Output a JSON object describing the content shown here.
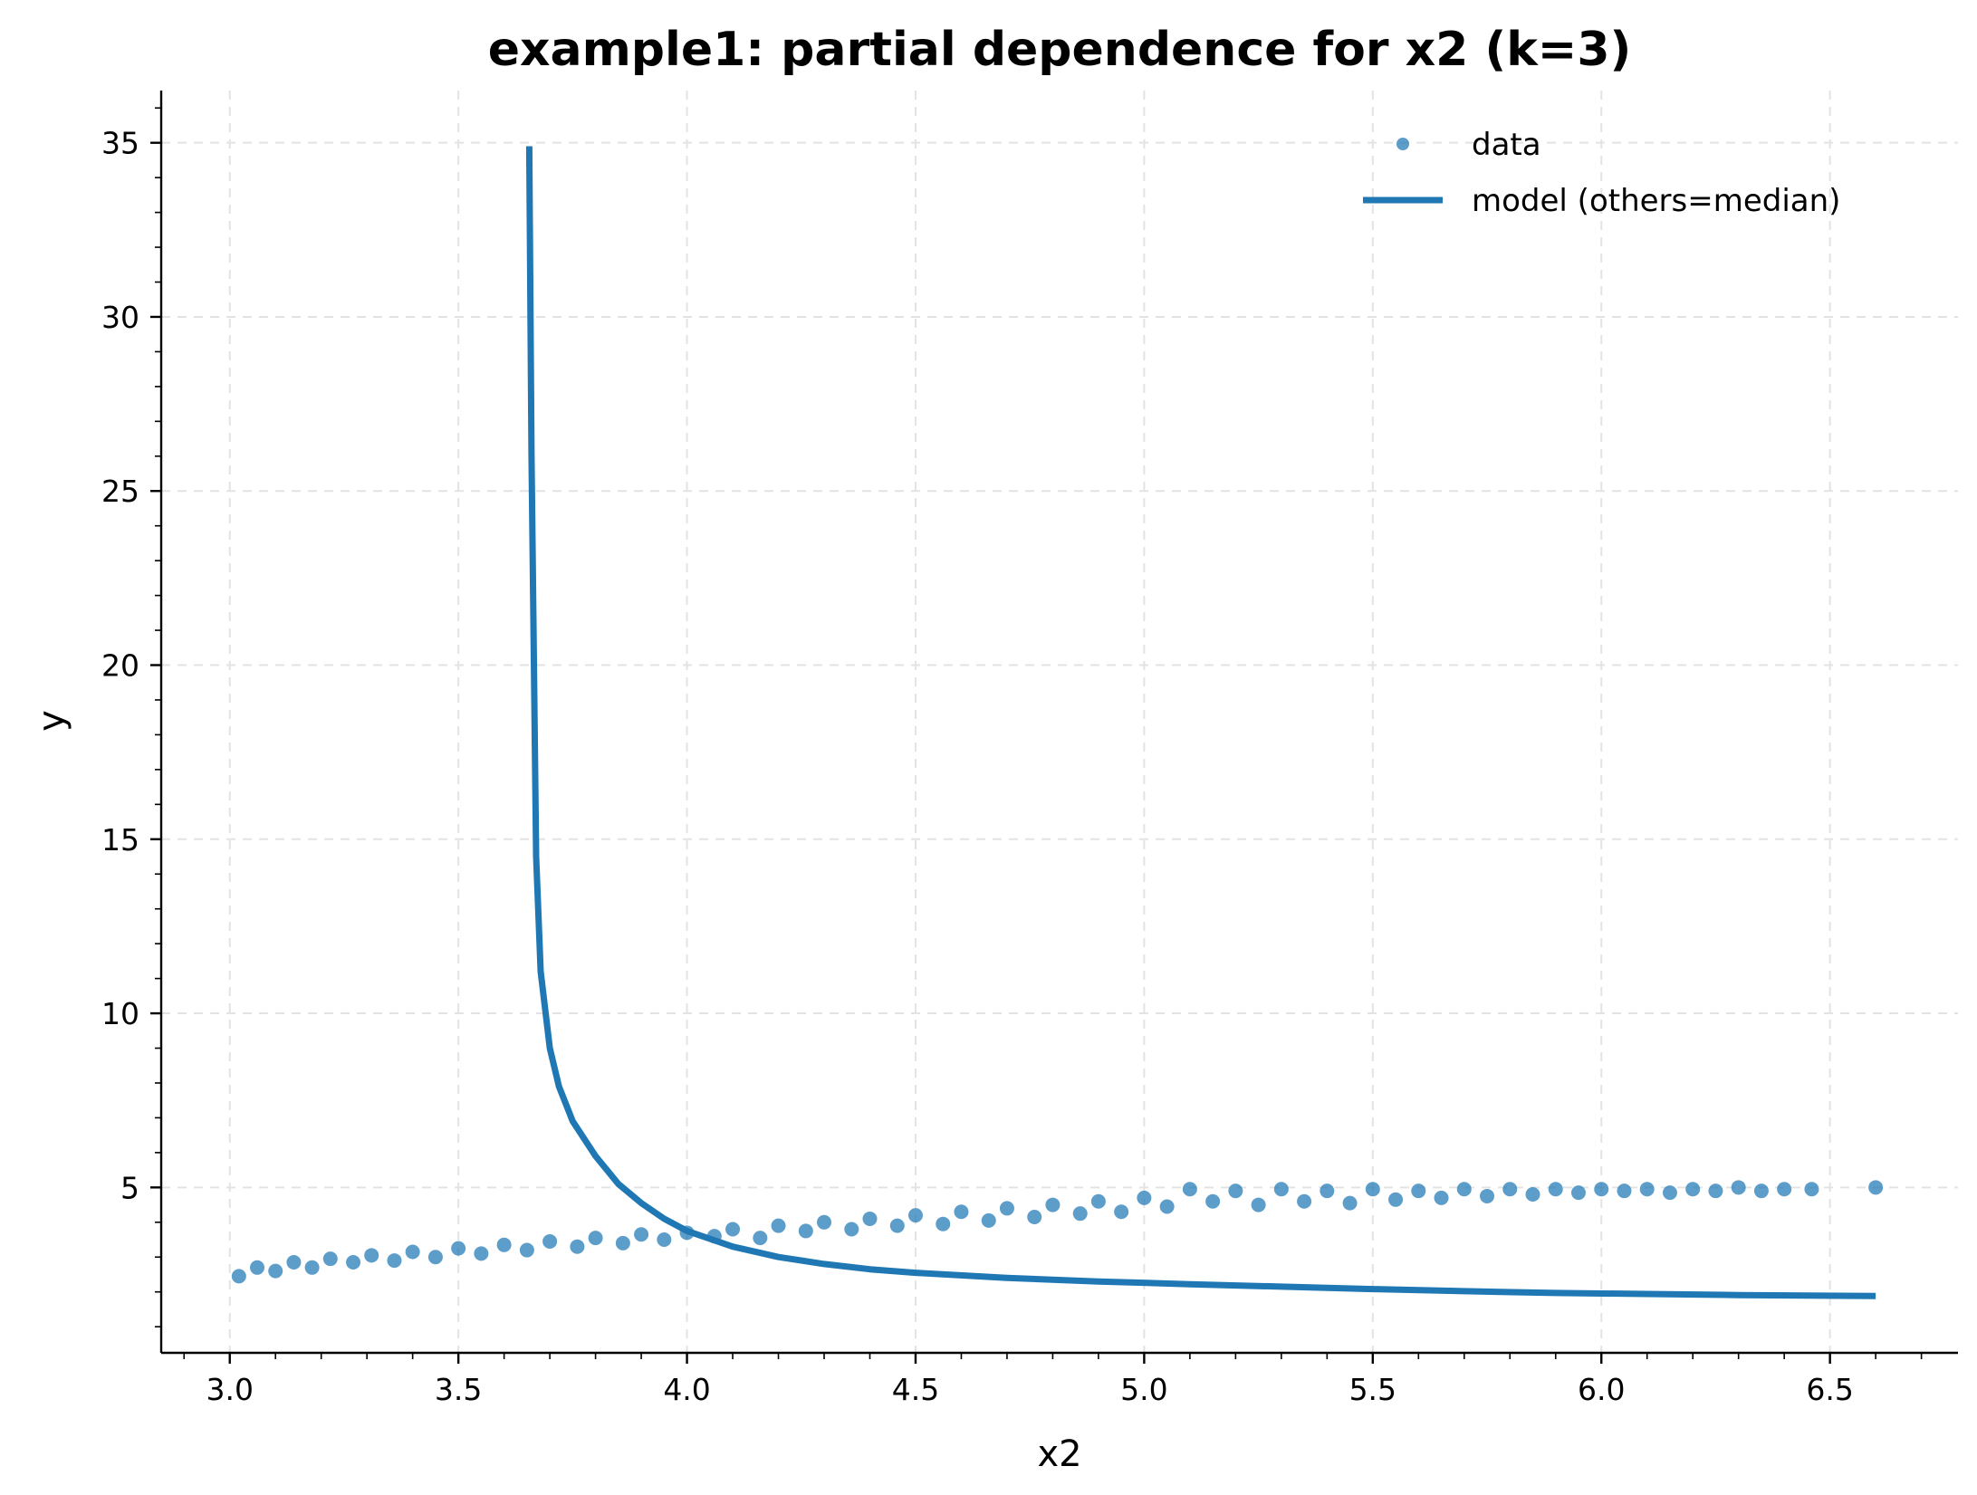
{
  "chart_data": {
    "type": "scatter",
    "title": "example1: partial dependence for x2 (k=3)",
    "xlabel": "x2",
    "ylabel": "y",
    "xlim": [
      2.85,
      6.78
    ],
    "ylim": [
      0.25,
      36.5
    ],
    "xticks": [
      "3.0",
      "3.5",
      "4.0",
      "4.5",
      "5.0",
      "5.5",
      "6.0",
      "6.5"
    ],
    "yticks": [
      "5",
      "10",
      "15",
      "20",
      "25",
      "30",
      "35"
    ],
    "grid": true,
    "legend_position": "top-right",
    "color": "#1f77b4",
    "series": [
      {
        "name": "data",
        "kind": "scatter",
        "points": [
          [
            3.02,
            2.45
          ],
          [
            3.06,
            2.7
          ],
          [
            3.1,
            2.6
          ],
          [
            3.14,
            2.85
          ],
          [
            3.18,
            2.7
          ],
          [
            3.22,
            2.95
          ],
          [
            3.27,
            2.85
          ],
          [
            3.31,
            3.05
          ],
          [
            3.36,
            2.9
          ],
          [
            3.4,
            3.15
          ],
          [
            3.45,
            3.0
          ],
          [
            3.5,
            3.25
          ],
          [
            3.55,
            3.1
          ],
          [
            3.6,
            3.35
          ],
          [
            3.65,
            3.2
          ],
          [
            3.7,
            3.45
          ],
          [
            3.76,
            3.3
          ],
          [
            3.8,
            3.55
          ],
          [
            3.86,
            3.4
          ],
          [
            3.9,
            3.65
          ],
          [
            3.95,
            3.5
          ],
          [
            4.0,
            3.7
          ],
          [
            4.06,
            3.6
          ],
          [
            4.1,
            3.8
          ],
          [
            4.16,
            3.55
          ],
          [
            4.2,
            3.9
          ],
          [
            4.26,
            3.75
          ],
          [
            4.3,
            4.0
          ],
          [
            4.36,
            3.8
          ],
          [
            4.4,
            4.1
          ],
          [
            4.46,
            3.9
          ],
          [
            4.5,
            4.2
          ],
          [
            4.56,
            3.95
          ],
          [
            4.6,
            4.3
          ],
          [
            4.66,
            4.05
          ],
          [
            4.7,
            4.4
          ],
          [
            4.76,
            4.15
          ],
          [
            4.8,
            4.5
          ],
          [
            4.86,
            4.25
          ],
          [
            4.9,
            4.6
          ],
          [
            4.95,
            4.3
          ],
          [
            5.0,
            4.7
          ],
          [
            5.05,
            4.45
          ],
          [
            5.1,
            4.95
          ],
          [
            5.15,
            4.6
          ],
          [
            5.2,
            4.9
          ],
          [
            5.25,
            4.5
          ],
          [
            5.3,
            4.95
          ],
          [
            5.35,
            4.6
          ],
          [
            5.4,
            4.9
          ],
          [
            5.45,
            4.55
          ],
          [
            5.5,
            4.95
          ],
          [
            5.55,
            4.65
          ],
          [
            5.6,
            4.9
          ],
          [
            5.65,
            4.7
          ],
          [
            5.7,
            4.95
          ],
          [
            5.75,
            4.75
          ],
          [
            5.8,
            4.95
          ],
          [
            5.85,
            4.8
          ],
          [
            5.9,
            4.95
          ],
          [
            5.95,
            4.85
          ],
          [
            6.0,
            4.95
          ],
          [
            6.05,
            4.9
          ],
          [
            6.1,
            4.95
          ],
          [
            6.15,
            4.85
          ],
          [
            6.2,
            4.95
          ],
          [
            6.25,
            4.9
          ],
          [
            6.3,
            5.0
          ],
          [
            6.35,
            4.9
          ],
          [
            6.4,
            4.95
          ],
          [
            6.46,
            4.95
          ],
          [
            6.6,
            5.0
          ]
        ]
      },
      {
        "name": "model (others=median)",
        "kind": "line",
        "points": [
          [
            3.655,
            34.9
          ],
          [
            3.66,
            26.0
          ],
          [
            3.67,
            14.5
          ],
          [
            3.68,
            11.2
          ],
          [
            3.7,
            9.0
          ],
          [
            3.72,
            7.9
          ],
          [
            3.75,
            6.9
          ],
          [
            3.8,
            5.9
          ],
          [
            3.85,
            5.1
          ],
          [
            3.9,
            4.55
          ],
          [
            3.95,
            4.1
          ],
          [
            4.0,
            3.75
          ],
          [
            4.1,
            3.3
          ],
          [
            4.2,
            3.0
          ],
          [
            4.3,
            2.8
          ],
          [
            4.4,
            2.65
          ],
          [
            4.5,
            2.55
          ],
          [
            4.7,
            2.4
          ],
          [
            4.9,
            2.3
          ],
          [
            5.1,
            2.22
          ],
          [
            5.3,
            2.15
          ],
          [
            5.5,
            2.08
          ],
          [
            5.7,
            2.02
          ],
          [
            5.9,
            1.97
          ],
          [
            6.1,
            1.94
          ],
          [
            6.3,
            1.91
          ],
          [
            6.6,
            1.88
          ]
        ]
      }
    ]
  }
}
